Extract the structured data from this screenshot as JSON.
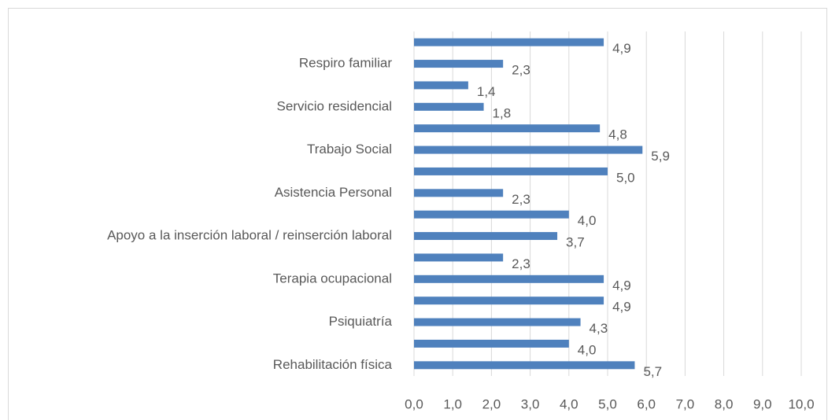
{
  "chart_data": {
    "type": "bar",
    "orientation": "horizontal",
    "categories": [
      null,
      "Respiro familiar",
      null,
      "Servicio residencial",
      null,
      "Trabajo Social",
      null,
      "Asistencia Personal",
      null,
      "Apoyo a la inserción laboral / reinserción laboral",
      null,
      "Terapia ocupacional",
      null,
      "Psiquiatría",
      null,
      "Rehabilitación física"
    ],
    "values": [
      4.9,
      2.3,
      1.4,
      1.8,
      4.8,
      5.9,
      5.0,
      2.3,
      4.0,
      3.7,
      2.3,
      4.9,
      4.9,
      4.3,
      4.0,
      5.7
    ],
    "value_labels": [
      "4,9",
      "2,3",
      "1,4",
      "1,8",
      "4,8",
      "5,9",
      "5,0",
      "2,3",
      "4,0",
      "3,7",
      "2,3",
      "4,9",
      "4,9",
      "4,3",
      "4,0",
      "5,7"
    ],
    "color": "#4f81bd",
    "xlim": [
      0,
      10
    ],
    "xticks": [
      {
        "value": 0,
        "label": "0,0"
      },
      {
        "value": 1,
        "label": "1,0"
      },
      {
        "value": 2,
        "label": "2,0"
      },
      {
        "value": 3,
        "label": "3,0"
      },
      {
        "value": 4,
        "label": "4,0"
      },
      {
        "value": 5,
        "label": "5,0"
      },
      {
        "value": 6,
        "label": "6,0"
      },
      {
        "value": 7,
        "label": "7,0"
      },
      {
        "value": 8,
        "label": "8,0"
      },
      {
        "value": 9,
        "label": "9,0"
      },
      {
        "value": 10,
        "label": "10,0"
      }
    ],
    "grid": true
  }
}
